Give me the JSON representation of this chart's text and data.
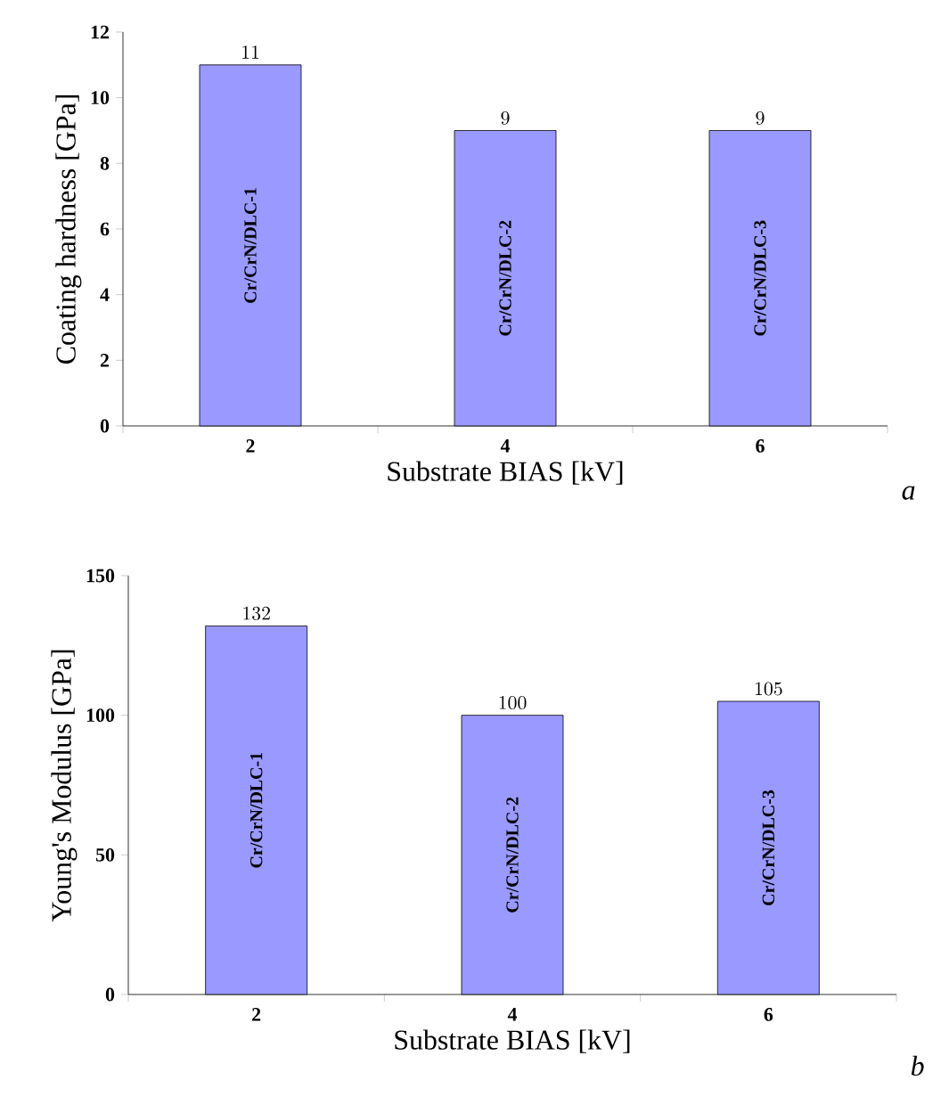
{
  "chart_data": [
    {
      "type": "bar",
      "categories": [
        "2",
        "4",
        "6"
      ],
      "values": [
        11,
        9,
        9
      ],
      "color": "#9999ff",
      "xlabel": "Substrate BIAS [kV]",
      "ylabel": "Coating hardness [GPa]",
      "ylim": [
        0,
        12
      ],
      "yticks": [
        0,
        2,
        4,
        6,
        8,
        10,
        12
      ],
      "data_labels": true,
      "annotations": [
        "Cr/CrN/DLC-1",
        "Cr/CrN/DLC-2",
        "Cr/CrN/DLC-3",
        "a"
      ]
    },
    {
      "type": "bar",
      "categories": [
        "2",
        "4",
        "6"
      ],
      "values": [
        132,
        100,
        105
      ],
      "color": "#9999ff",
      "xlabel": "Substrate BIAS [kV]",
      "ylabel": "Young's Modulus [GPa]",
      "ylim": [
        0,
        150
      ],
      "yticks": [
        0,
        50,
        100,
        150
      ],
      "data_labels": true,
      "annotations": [
        "Cr/CrN/DLC-1",
        "Cr/CrN/DLC-2",
        "Cr/CrN/DLC-3",
        "b"
      ]
    }
  ]
}
